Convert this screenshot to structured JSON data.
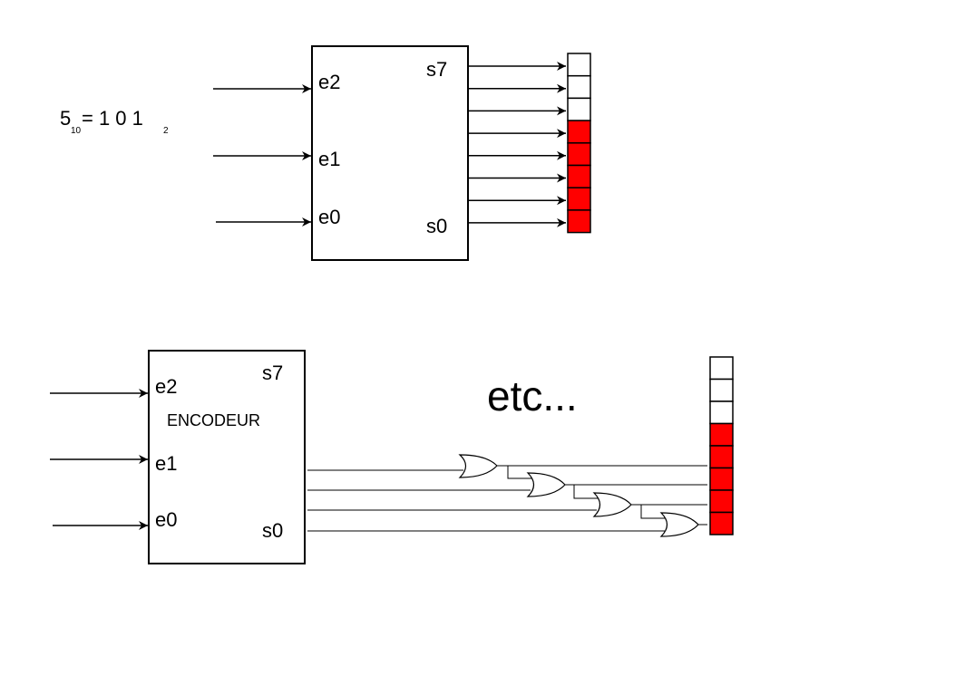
{
  "top_diagram": {
    "equation": {
      "base_digit": "5",
      "base_sub": "10",
      "equals_bits": "= 1 0 1",
      "result_sub": "2"
    },
    "inputs": [
      "e2",
      "e1",
      "e0"
    ],
    "output_top": "s7",
    "output_bottom": "s0",
    "outputs_count": 8,
    "lit_cells": 5
  },
  "bottom_diagram": {
    "block_title": "ENCODEUR",
    "inputs": [
      "e2",
      "e1",
      "e0"
    ],
    "output_top": "s7",
    "output_bottom": "s0",
    "continuation": "etc...",
    "outputs_count": 8,
    "lit_cells": 5,
    "or_gates": 4
  },
  "colors": {
    "lit": "#ff0000",
    "unlit": "#ffffff",
    "line": "#000000"
  }
}
